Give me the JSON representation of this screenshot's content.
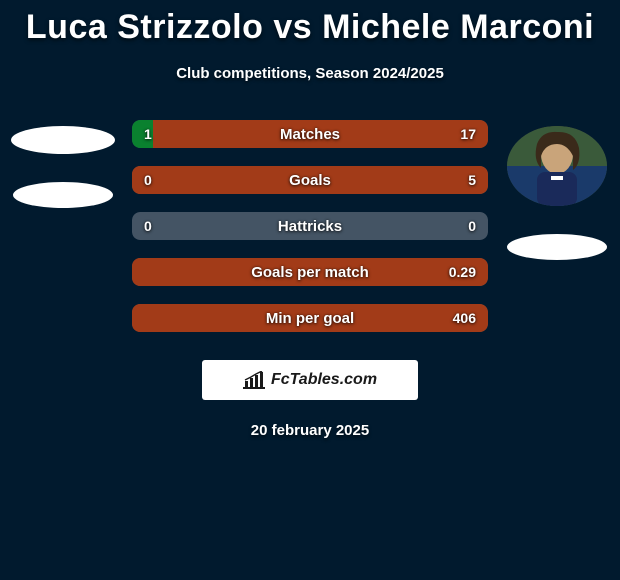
{
  "background_color": "#011a2e",
  "title": "Luca Strizzolo vs Michele Marconi",
  "title_fontsize": 34,
  "title_color": "#ffffff",
  "subtitle": "Club competitions, Season 2024/2025",
  "subtitle_fontsize": 15,
  "footer_date": "20 february 2025",
  "logo_text": "FcTables.com",
  "players": {
    "left": {
      "name": "Luca Strizzolo",
      "avatar_placeholder": true,
      "club_placeholder": true
    },
    "right": {
      "name": "Michele Marconi",
      "avatar_placeholder": false,
      "club_placeholder": true
    }
  },
  "colors": {
    "left_bar": "#0a812f",
    "right_bar": "#a23b18",
    "neutral_bar": "#445464",
    "text": "#ffffff",
    "logo_bg": "#ffffff",
    "logo_text": "#1a1a1a"
  },
  "bar_style": {
    "height": 28,
    "border_radius": 8,
    "gap": 18,
    "label_fontsize": 15,
    "value_fontsize": 14
  },
  "stats": [
    {
      "label": "Matches",
      "left_value": "1",
      "right_value": "17",
      "left_num": 1,
      "right_num": 17,
      "left_pct": 6,
      "right_pct": 94
    },
    {
      "label": "Goals",
      "left_value": "0",
      "right_value": "5",
      "left_num": 0,
      "right_num": 5,
      "left_pct": 0,
      "right_pct": 100
    },
    {
      "label": "Hattricks",
      "left_value": "0",
      "right_value": "0",
      "left_num": 0,
      "right_num": 0,
      "left_pct": 0,
      "right_pct": 0
    },
    {
      "label": "Goals per match",
      "left_value": "",
      "right_value": "0.29",
      "left_num": 0,
      "right_num": 0.29,
      "left_pct": 0,
      "right_pct": 100
    },
    {
      "label": "Min per goal",
      "left_value": "",
      "right_value": "406",
      "left_num": 0,
      "right_num": 406,
      "left_pct": 0,
      "right_pct": 100
    }
  ]
}
